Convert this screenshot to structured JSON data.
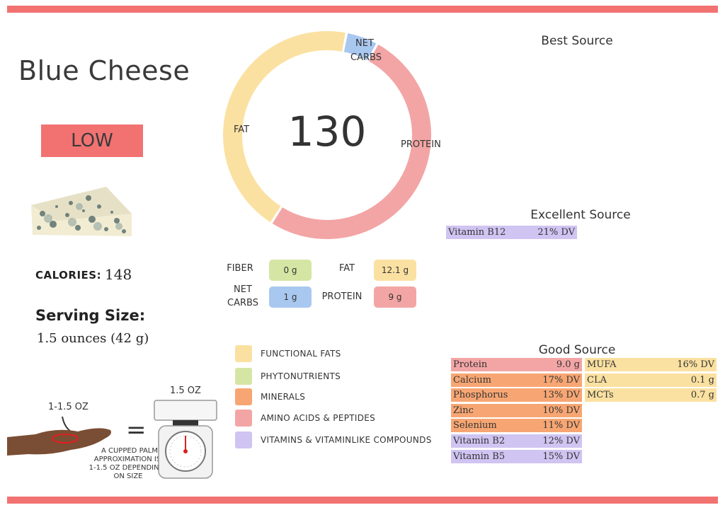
{
  "colors": {
    "accent": "#f27272",
    "fat": "#fbe1a1",
    "protein": "#f3a5a5",
    "net_carbs": "#a9c8f0",
    "fiber": "#d5e6a4",
    "minerals": "#f7a673",
    "vitamins": "#cfc4f2",
    "functional_fats": "#fbe1a1",
    "phytonutrients": "#d5e6a4",
    "amino": "#f3a5a5"
  },
  "food_name": "Blue Cheese",
  "rating": "LOW",
  "calories": {
    "label": "CALORIES:",
    "value": "148"
  },
  "serving": {
    "label": "Serving Size:",
    "value": "1.5 ounces (42 g)"
  },
  "donut": {
    "center": "130",
    "segments": [
      {
        "name": "FAT",
        "value": 0.44,
        "color": "#fbe1a1"
      },
      {
        "name": "NET CARBS",
        "value": 0.05,
        "color": "#a9c8f0"
      },
      {
        "name": "PROTEIN",
        "value": 0.51,
        "color": "#f3a5a5"
      }
    ],
    "labels": {
      "fat": "FAT",
      "net": "NET",
      "carbs": "CARBS",
      "protein": "PROTEIN"
    }
  },
  "macros": {
    "fiber": {
      "label": "FIBER",
      "value": "0 g"
    },
    "net_carbs": {
      "label1": "NET",
      "label2": "CARBS",
      "value": "1 g"
    },
    "fat": {
      "label": "FAT",
      "value": "12.1 g"
    },
    "protein": {
      "label": "PROTEIN",
      "value": "9 g"
    }
  },
  "legend": [
    {
      "label": "FUNCTIONAL FATS",
      "color": "#fbe1a1"
    },
    {
      "label": "PHYTONUTRIENTS",
      "color": "#d5e6a4"
    },
    {
      "label": "MINERALS",
      "color": "#f7a673"
    },
    {
      "label": "AMINO ACIDS & PEPTIDES",
      "color": "#f3a5a5"
    },
    {
      "label": "VITAMINS & VITAMINLIKE COMPOUNDS",
      "color": "#cfc4f2"
    }
  ],
  "best_source": {
    "title": "Best Source"
  },
  "excellent_source": {
    "title": "Excellent Source",
    "items": [
      {
        "name": "Vitamin B12",
        "value": "21% DV",
        "color": "#cfc4f2"
      }
    ]
  },
  "good_source": {
    "title": "Good Source",
    "left": [
      {
        "name": "Protein",
        "value": "9.0 g",
        "color": "#f3a5a5"
      },
      {
        "name": "Calcium",
        "value": "17% DV",
        "color": "#f7a673"
      },
      {
        "name": "Phosphorus",
        "value": "13% DV",
        "color": "#f7a673"
      },
      {
        "name": "Zinc",
        "value": "10% DV",
        "color": "#f7a673"
      },
      {
        "name": "Selenium",
        "value": "11% DV",
        "color": "#f7a673"
      },
      {
        "name": "Vitamin B2",
        "value": "12% DV",
        "color": "#cfc4f2"
      },
      {
        "name": "Vitamin B5",
        "value": "15% DV",
        "color": "#cfc4f2"
      }
    ],
    "right": [
      {
        "name": "MUFA",
        "value": "16% DV",
        "color": "#fbe1a1"
      },
      {
        "name": "CLA",
        "value": "0.1 g",
        "color": "#fbe1a1"
      },
      {
        "name": "MCTs",
        "value": "0.7 g",
        "color": "#fbe1a1"
      }
    ]
  },
  "portion": {
    "hand_label": "1-1.5 OZ",
    "scale_label": "1.5 OZ",
    "equals": "=",
    "caption1": "A CUPPED PALM",
    "caption2": "APPROXIMATION IS",
    "caption3": "1-1.5 OZ DEPENDING",
    "caption4": "ON SIZE"
  }
}
